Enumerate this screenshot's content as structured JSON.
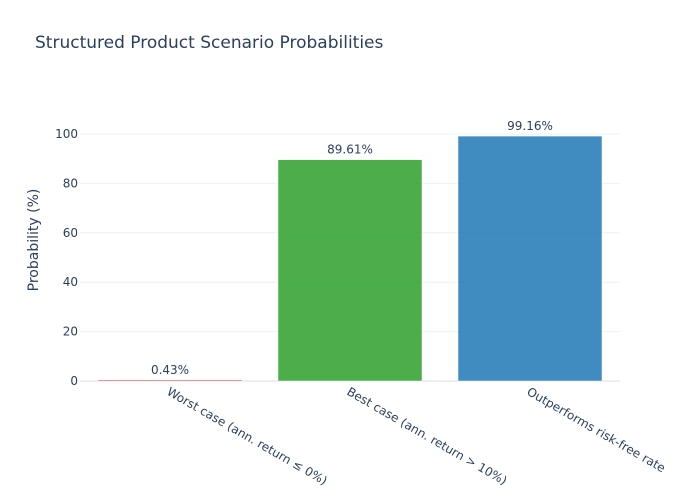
{
  "chart_data": {
    "type": "bar",
    "title": "Structured Product Scenario Probabilities",
    "xlabel": "",
    "ylabel": "Probability (%)",
    "ylim": [
      0,
      100
    ],
    "yticks": [
      0,
      20,
      40,
      60,
      80,
      100
    ],
    "grid": true,
    "categories": [
      "Worst case (ann. return ≤ 0%)",
      "Best case (ann. return > 10%)",
      "Outperforms risk-free rate"
    ],
    "values": [
      0.43,
      89.61,
      99.16
    ],
    "data_labels": [
      "0.43%",
      "89.61%",
      "99.16%"
    ],
    "colors": [
      "#d62728",
      "#2ca02c",
      "#1f77b4"
    ]
  }
}
